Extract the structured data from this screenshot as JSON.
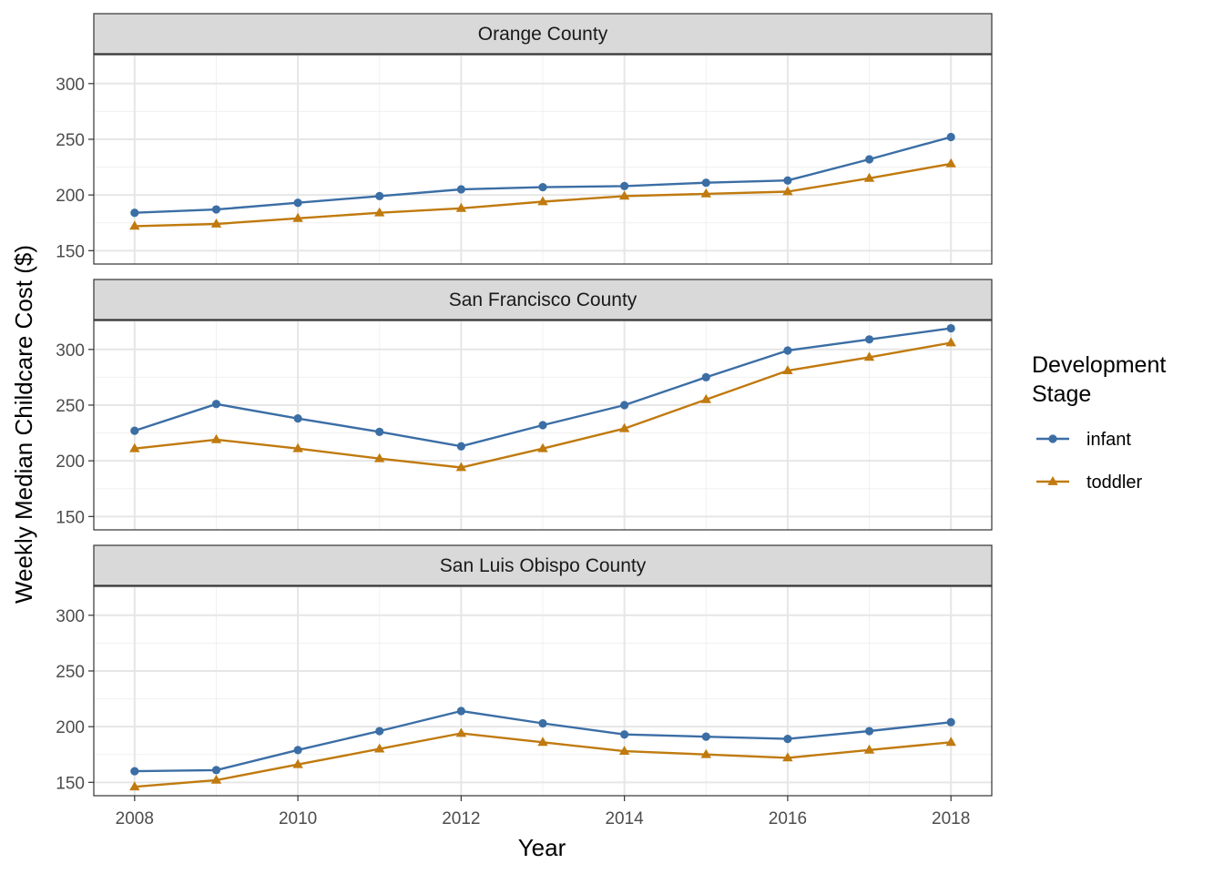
{
  "chart_data": {
    "type": "line",
    "xlabel": "Year",
    "ylabel": "Weekly Median Childcare Cost ($)",
    "x": [
      2008,
      2009,
      2010,
      2011,
      2012,
      2013,
      2014,
      2015,
      2016,
      2017,
      2018
    ],
    "x_ticks": [
      2008,
      2010,
      2012,
      2014,
      2016,
      2018
    ],
    "xlim": [
      2007.5,
      2018.5
    ],
    "y_ticks": [
      150,
      200,
      250,
      300
    ],
    "ylim": [
      138,
      326
    ],
    "grid": true,
    "legend": {
      "title_lines": [
        "Development",
        "Stage"
      ],
      "placement": "right",
      "entries": [
        "infant",
        "toddler"
      ]
    },
    "series_colors": {
      "infant": "#3b6ea5",
      "toddler": "#c07a0e"
    },
    "series_markers": {
      "infant": "circle",
      "toddler": "triangle"
    },
    "panels": [
      {
        "title": "Orange County",
        "series": [
          {
            "name": "infant",
            "values": [
              184,
              187,
              193,
              199,
              205,
              207,
              208,
              211,
              213,
              232,
              252
            ]
          },
          {
            "name": "toddler",
            "values": [
              172,
              174,
              179,
              184,
              188,
              194,
              199,
              201,
              203,
              215,
              228
            ]
          }
        ]
      },
      {
        "title": "San Francisco County",
        "series": [
          {
            "name": "infant",
            "values": [
              227,
              251,
              238,
              226,
              213,
              232,
              250,
              275,
              299,
              309,
              319
            ]
          },
          {
            "name": "toddler",
            "values": [
              211,
              219,
              211,
              202,
              194,
              211,
              229,
              255,
              281,
              293,
              306
            ]
          }
        ]
      },
      {
        "title": "San Luis Obispo County",
        "series": [
          {
            "name": "infant",
            "values": [
              160,
              161,
              179,
              196,
              214,
              203,
              193,
              191,
              189,
              196,
              204
            ]
          },
          {
            "name": "toddler",
            "values": [
              146,
              152,
              166,
              180,
              194,
              186,
              178,
              175,
              172,
              179,
              186
            ]
          }
        ]
      }
    ]
  }
}
